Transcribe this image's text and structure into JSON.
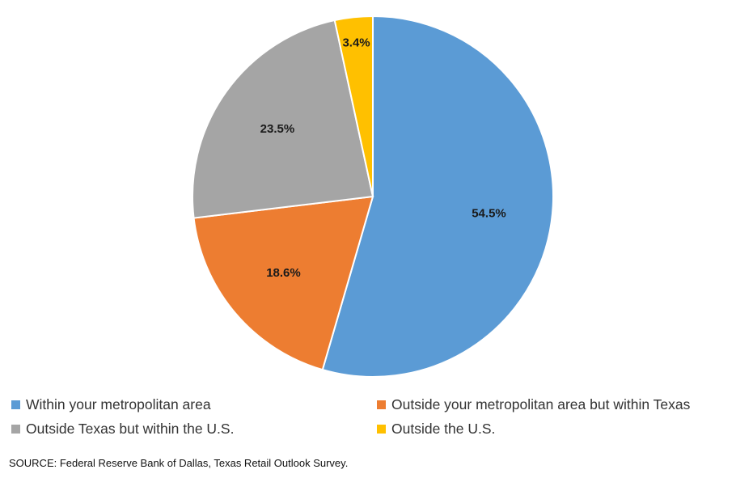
{
  "chart_data": {
    "type": "pie",
    "categories": [
      "Within your metropolitan area",
      "Outside your metropolitan area but within Texas",
      "Outside Texas but within the U.S.",
      "Outside the U.S."
    ],
    "values": [
      54.5,
      18.6,
      23.5,
      3.4
    ],
    "value_labels": [
      "54.5%",
      "18.6%",
      "23.5%",
      "3.4%"
    ],
    "colors": [
      "#5B9BD5",
      "#ED7D31",
      "#A5A5A5",
      "#FFC000"
    ],
    "start_angle": "12 o'clock",
    "direction": "clockwise",
    "legend_position": "bottom"
  },
  "source": "SOURCE: Federal Reserve Bank of Dallas, Texas Retail Outlook Survey."
}
